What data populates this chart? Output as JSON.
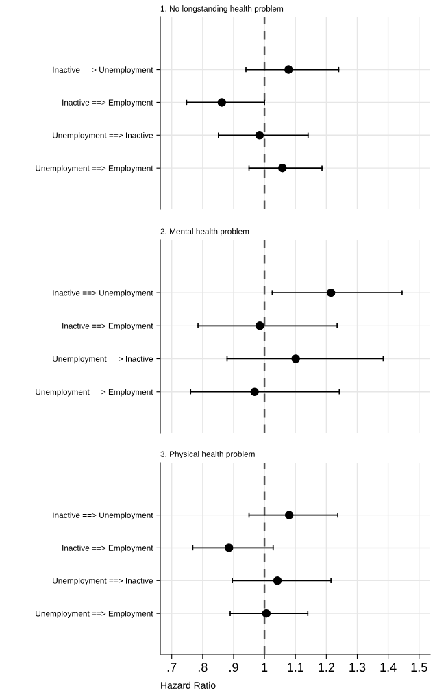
{
  "chart_data": [
    {
      "type": "scatter",
      "title": "1. No longstanding health problem",
      "orientation": "horizontal",
      "categories": [
        "Inactive ==> Unemployment",
        "Inactive ==> Employment",
        "Unemployment ==> Inactive",
        "Unemployment ==> Employment"
      ],
      "series": [
        {
          "color": "#000000",
          "values": [
            1.078,
            0.862,
            0.984,
            1.058
          ],
          "errors": [
            [
              0.94,
              1.24
            ],
            [
              0.748,
              1.0
            ],
            [
              0.851,
              1.141
            ],
            [
              0.95,
              1.186
            ]
          ]
        }
      ],
      "xlim": [
        0.663,
        1.536
      ],
      "xticks": [
        0.7,
        0.8,
        0.9,
        1,
        1.1,
        1.2,
        1.3,
        1.4,
        1.5
      ],
      "ref_lines": [
        {
          "axis": "x",
          "value": 1,
          "color": "#555555",
          "line_style": "dashed"
        }
      ],
      "grid": true,
      "marker": "circle",
      "tick_labels": "y",
      "legend": false
    },
    {
      "type": "scatter",
      "title": "2. Mental health problem",
      "orientation": "horizontal",
      "categories": [
        "Inactive ==> Unemployment",
        "Inactive ==> Employment",
        "Unemployment ==> Inactive",
        "Unemployment ==> Employment"
      ],
      "series": [
        {
          "color": "#000000",
          "values": [
            1.215,
            0.985,
            1.101,
            0.968
          ],
          "errors": [
            [
              1.025,
              1.445
            ],
            [
              0.785,
              1.235
            ],
            [
              0.879,
              1.384
            ],
            [
              0.761,
              1.242
            ]
          ]
        }
      ],
      "xlim": [
        0.663,
        1.536
      ],
      "xticks": [
        0.7,
        0.8,
        0.9,
        1,
        1.1,
        1.2,
        1.3,
        1.4,
        1.5
      ],
      "ref_lines": [
        {
          "axis": "x",
          "value": 1,
          "color": "#555555",
          "line_style": "dashed"
        }
      ],
      "grid": true,
      "marker": "circle",
      "tick_labels": "y",
      "legend": false
    },
    {
      "type": "scatter",
      "title": "3. Physical health problem",
      "orientation": "horizontal",
      "xlabel": "Hazard Ratio",
      "categories": [
        "Inactive ==> Unemployment",
        "Inactive ==> Employment",
        "Unemployment ==> Inactive",
        "Unemployment ==> Employment"
      ],
      "series": [
        {
          "color": "#000000",
          "values": [
            1.08,
            0.885,
            1.042,
            1.006
          ],
          "errors": [
            [
              0.95,
              1.237
            ],
            [
              0.768,
              1.028
            ],
            [
              0.896,
              1.215
            ],
            [
              0.889,
              1.14
            ]
          ]
        }
      ],
      "xlim": [
        0.663,
        1.536
      ],
      "xticks": [
        {
          "value": 0.7,
          "label": ".7"
        },
        {
          "value": 0.8,
          "label": ".8"
        },
        {
          "value": 0.9,
          "label": ".9"
        },
        1,
        1.1,
        1.2,
        1.3,
        1.4,
        1.5
      ],
      "ref_lines": [
        {
          "axis": "x",
          "value": 1,
          "color": "#555555",
          "line_style": "dashed"
        }
      ],
      "grid": true,
      "marker": "circle",
      "legend": false
    }
  ]
}
